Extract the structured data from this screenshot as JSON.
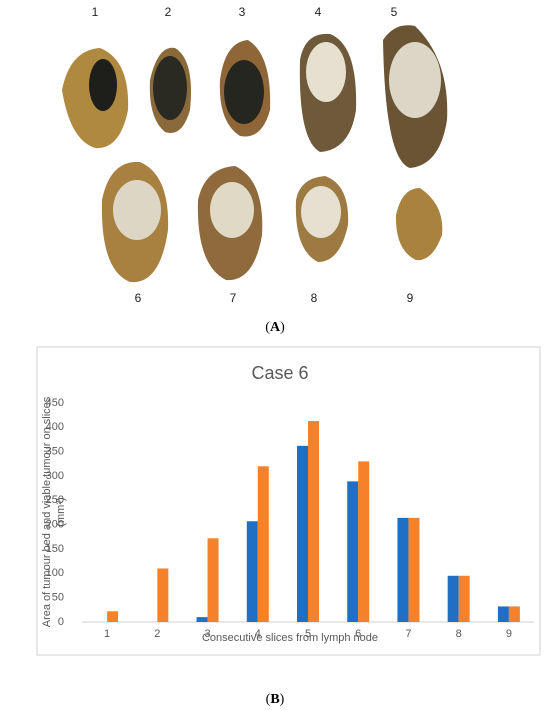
{
  "photo_panel": {
    "labels": [
      "1",
      "2",
      "3",
      "4",
      "5",
      "6",
      "7",
      "8",
      "9"
    ],
    "caption": "A"
  },
  "chart_panel": {
    "caption": "B"
  },
  "chart_data": {
    "type": "bar",
    "title": "Case 6",
    "x_label": "Consecutive slices from lymph node",
    "y_label": [
      "Area of tumour bed and viable tumour on slices",
      "(mm²)"
    ],
    "categories": [
      "1",
      "2",
      "3",
      "4",
      "5",
      "6",
      "7",
      "8",
      "9"
    ],
    "series": [
      {
        "color": "#1f6fc5",
        "values": [
          0,
          0,
          10,
          207,
          362,
          289,
          214,
          95,
          32
        ]
      },
      {
        "color": "#f5822a",
        "values": [
          22,
          110,
          172,
          320,
          413,
          330,
          214,
          95,
          32
        ]
      }
    ],
    "ylim": [
      0,
      450
    ],
    "yticks": [
      0,
      50,
      100,
      150,
      200,
      250,
      300,
      350,
      400,
      450
    ],
    "grid": false
  }
}
